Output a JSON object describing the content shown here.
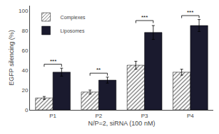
{
  "chart_data": {
    "type": "bar",
    "categories": [
      "P1",
      "P2",
      "P3",
      "P4"
    ],
    "series": [
      {
        "name": "Complexes",
        "color": "#e8e8e8",
        "values": [
          12,
          18,
          45,
          38
        ],
        "errors": [
          1.5,
          2,
          4,
          3
        ]
      },
      {
        "name": "Liposomes",
        "color": "#1a1a2e",
        "values": [
          38,
          30,
          78,
          85
        ],
        "errors": [
          4,
          3,
          7,
          6
        ]
      }
    ],
    "xlabel": "N/P=2, siRNA (100 nM)",
    "ylabel": "EGFP silencing (%)",
    "ylim": [
      0,
      105
    ],
    "yticks": [
      0,
      20,
      40,
      60,
      80,
      100
    ],
    "annotations": [
      {
        "category": "P1",
        "y": 46,
        "text": "***"
      },
      {
        "category": "P2",
        "y": 37,
        "text": "**"
      },
      {
        "category": "P3",
        "y": 90,
        "text": "***"
      },
      {
        "category": "P4",
        "y": 95,
        "text": "***"
      }
    ],
    "legend": "upper left",
    "grid": false
  }
}
